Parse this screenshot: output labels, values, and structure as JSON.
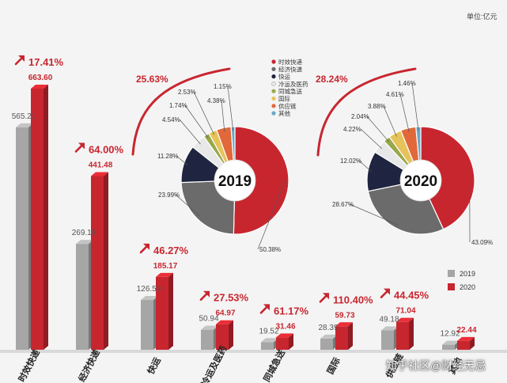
{
  "unit_label": "单位:亿元",
  "watermark": "知乎社区@财经无忌",
  "colors": {
    "bar_2019": "#a6a6a6",
    "bar_2020": "#c8262f",
    "arrow": "#c8262f",
    "growth_text": "#c8262f",
    "value_2019_text": "#555555",
    "value_2020_text": "#c8262f"
  },
  "chart_data": [
    {
      "type": "bar",
      "categories": [
        "时效快递",
        "经济快递",
        "快运",
        "冷运及医药",
        "同城急送",
        "国际",
        "供应链",
        "其他"
      ],
      "series": [
        {
          "name": "2019",
          "values": [
            565.21,
            269.19,
            126.59,
            50.94,
            19.52,
            28.39,
            49.18,
            12.92
          ]
        },
        {
          "name": "2020",
          "values": [
            663.6,
            441.48,
            185.17,
            64.97,
            31.46,
            59.73,
            71.04,
            22.44
          ]
        }
      ],
      "value_labels_2019": [
        "565.21",
        "269.19",
        "126.59",
        "50.94",
        "19.52",
        "28.39",
        "49.18",
        "12.92"
      ],
      "value_labels_2020": [
        "663.60",
        "441.48",
        "185.17",
        "64.97",
        "31.46",
        "59.73",
        "71.04",
        "22.44"
      ],
      "growth_labels": [
        "17.41%",
        "64.00%",
        "46.27%",
        "27.53%",
        "61.17%",
        "110.40%",
        "44.45%",
        ""
      ],
      "legend": [
        "2019",
        "2020"
      ],
      "legend_position": "bottom-right"
    },
    {
      "type": "pie",
      "center_label": "2019",
      "growth_label": "25.63%",
      "labels": [
        "时效快递",
        "经济快递",
        "快运",
        "冷运及医药",
        "同城急送",
        "国际",
        "供应链",
        "其他"
      ],
      "values": [
        50.38,
        23.99,
        11.28,
        4.54,
        1.74,
        2.53,
        4.38,
        1.15
      ],
      "value_labels": [
        "50.38%",
        "23.99%",
        "11.28%",
        "4.54%",
        "1.74%",
        "2.53%",
        "4.38%",
        "1.15%"
      ]
    },
    {
      "type": "pie",
      "center_label": "2020",
      "growth_label": "28.24%",
      "labels": [
        "时效快递",
        "经济快递",
        "快运",
        "冷运及医药",
        "同城急送",
        "国际",
        "供应链",
        "其他"
      ],
      "values": [
        43.09,
        28.67,
        12.02,
        4.22,
        2.04,
        3.88,
        4.61,
        1.46
      ],
      "value_labels": [
        "43.09%",
        "28.67%",
        "12.02%",
        "4.22%",
        "2.04%",
        "3.88%",
        "4.61%",
        "1.46%"
      ]
    }
  ],
  "pie_legend": {
    "items": [
      "时效快递",
      "经济快递",
      "快运",
      "冷运及医药",
      "同城急送",
      "国际",
      "供应链",
      "其他"
    ],
    "colors": [
      "#c8262f",
      "#6b6b6b",
      "#1f2540",
      "#e8e8e8",
      "#98a84a",
      "#e6c35a",
      "#e0683a",
      "#6aa8c8"
    ]
  }
}
